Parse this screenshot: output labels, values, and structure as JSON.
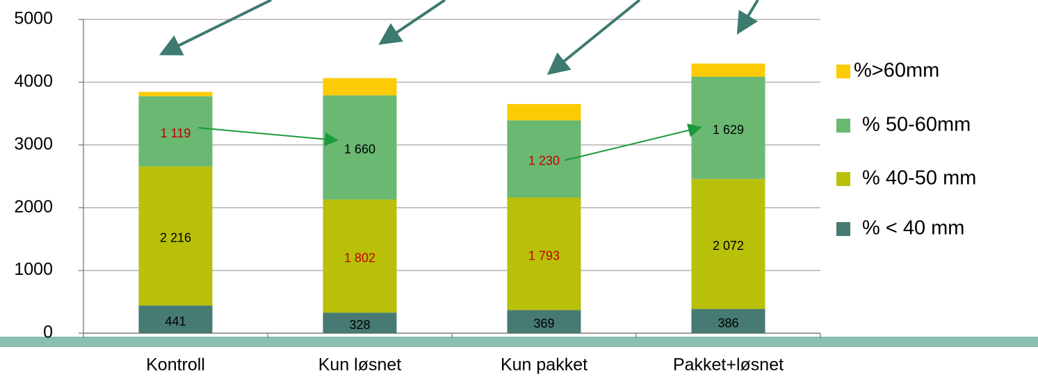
{
  "chart_data": {
    "type": "stacked_bar",
    "categories": [
      "Kontroll",
      "Kun løsnet",
      "Kun pakket",
      "Pakket+løsnet"
    ],
    "series": [
      {
        "name": "% < 40 mm",
        "color": "#467a72",
        "values": [
          441,
          328,
          369,
          386
        ],
        "value_labels": [
          "441",
          "328",
          "369",
          "386"
        ],
        "label_colors": [
          "#000000",
          "#000000",
          "#000000",
          "#000000"
        ]
      },
      {
        "name": "% 40-50 mm",
        "color": "#b8c00a",
        "values": [
          2216,
          1802,
          1793,
          2072
        ],
        "value_labels": [
          "2 216",
          "1 802",
          "1 793",
          "2 072"
        ],
        "label_colors": [
          "#000000",
          "#c00000",
          "#c00000",
          "#000000"
        ]
      },
      {
        "name": "% 50-60mm",
        "color": "#6ab872",
        "values": [
          1119,
          1660,
          1230,
          1629
        ],
        "value_labels": [
          "1 119",
          "1 660",
          "1 230",
          "1 629"
        ],
        "label_colors": [
          "#c00000",
          "#000000",
          "#c00000",
          "#000000"
        ]
      },
      {
        "name": "%>60mm",
        "color": "#fccb05",
        "values": [
          70,
          275,
          260,
          210
        ]
      }
    ],
    "ylim": [
      0,
      5000
    ],
    "yticks": [
      0,
      1000,
      2000,
      3000,
      4000,
      5000
    ],
    "grid": true,
    "legend": "right"
  }
}
